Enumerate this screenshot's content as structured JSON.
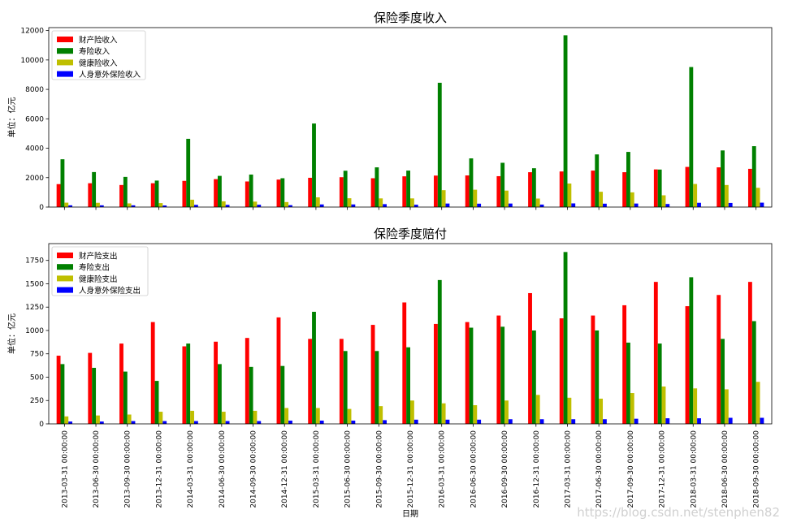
{
  "watermark": "https://blog.csdn.net/stenphen82",
  "xlabel": "日期",
  "categories": [
    "2013-03-31 00:00:00",
    "2013-06-30 00:00:00",
    "2013-09-30 00:00:00",
    "2013-12-31 00:00:00",
    "2014-03-31 00:00:00",
    "2014-06-30 00:00:00",
    "2014-09-30 00:00:00",
    "2014-12-31 00:00:00",
    "2015-03-31 00:00:00",
    "2015-06-30 00:00:00",
    "2015-09-30 00:00:00",
    "2015-12-31 00:00:00",
    "2016-03-31 00:00:00",
    "2016-06-30 00:00:00",
    "2016-09-30 00:00:00",
    "2016-12-31 00:00:00",
    "2017-03-31 00:00:00",
    "2017-06-30 00:00:00",
    "2017-09-30 00:00:00",
    "2017-12-31 00:00:00",
    "2018-03-31 00:00:00",
    "2018-06-30 00:00:00",
    "2018-09-30 00:00:00"
  ],
  "colors": {
    "red": "#ff0000",
    "green": "#008000",
    "yellow": "#bfbf00",
    "blue": "#0000ff"
  },
  "chart_data": [
    {
      "type": "bar",
      "title": "保险季度收入",
      "ylabel": "单位：亿元",
      "ylim": [
        0,
        12200
      ],
      "yticks": [
        0,
        2000,
        4000,
        6000,
        8000,
        10000,
        12000
      ],
      "yticklabels": [
        "0",
        "2000",
        "4000",
        "6000",
        "8000",
        "10000",
        "12000"
      ],
      "legend_position": "upper-left",
      "series": [
        {
          "name": "财产险收入",
          "color": "#ff0000",
          "values": [
            1560,
            1620,
            1500,
            1620,
            1780,
            1900,
            1740,
            1870,
            1990,
            2030,
            1960,
            2090,
            2140,
            2150,
            2100,
            2370,
            2420,
            2480,
            2370,
            2560,
            2730,
            2700,
            2600
          ]
        },
        {
          "name": "寿险收入",
          "color": "#008000",
          "values": [
            3250,
            2380,
            2050,
            1800,
            4640,
            2120,
            2210,
            1960,
            5680,
            2470,
            2700,
            2480,
            8450,
            3310,
            3010,
            2640,
            11680,
            3580,
            3750,
            2550,
            9520,
            3850,
            4140
          ]
        },
        {
          "name": "健康险收入",
          "color": "#bfbf00",
          "values": [
            300,
            290,
            250,
            270,
            500,
            390,
            370,
            340,
            660,
            600,
            590,
            590,
            1150,
            1180,
            1120,
            580,
            1600,
            1040,
            1000,
            800,
            1570,
            1500,
            1310
          ]
        },
        {
          "name": "人身意外保险收入",
          "color": "#0000ff",
          "values": [
            120,
            120,
            120,
            110,
            150,
            150,
            160,
            130,
            180,
            180,
            200,
            160,
            240,
            230,
            240,
            170,
            250,
            230,
            240,
            210,
            290,
            280,
            300
          ]
        }
      ]
    },
    {
      "type": "bar",
      "title": "保险季度赔付",
      "ylabel": "单位：亿元",
      "ylim": [
        0,
        1930
      ],
      "yticks": [
        0,
        250,
        500,
        750,
        1000,
        1250,
        1500,
        1750
      ],
      "yticklabels": [
        "0",
        "250",
        "500",
        "750",
        "1000",
        "1250",
        "1500",
        "1750"
      ],
      "legend_position": "upper-left",
      "series": [
        {
          "name": "财产险支出",
          "color": "#ff0000",
          "values": [
            730,
            760,
            860,
            1090,
            830,
            880,
            920,
            1140,
            910,
            910,
            1060,
            1300,
            1070,
            1090,
            1160,
            1400,
            1130,
            1160,
            1270,
            1520,
            1260,
            1380,
            1520
          ]
        },
        {
          "name": "寿险支出",
          "color": "#008000",
          "values": [
            640,
            600,
            560,
            460,
            860,
            640,
            610,
            620,
            1200,
            780,
            780,
            820,
            1540,
            1030,
            1040,
            1000,
            1840,
            1000,
            870,
            860,
            1570,
            910,
            1100
          ]
        },
        {
          "name": "健康险支出",
          "color": "#bfbf00",
          "values": [
            80,
            90,
            100,
            130,
            140,
            130,
            140,
            170,
            170,
            160,
            190,
            250,
            220,
            200,
            250,
            310,
            280,
            270,
            330,
            400,
            380,
            370,
            450
          ]
        },
        {
          "name": "人身意外保险支出",
          "color": "#0000ff",
          "values": [
            25,
            25,
            30,
            30,
            30,
            30,
            30,
            35,
            35,
            35,
            40,
            45,
            45,
            45,
            50,
            50,
            50,
            50,
            55,
            60,
            60,
            65,
            65
          ]
        }
      ]
    }
  ]
}
